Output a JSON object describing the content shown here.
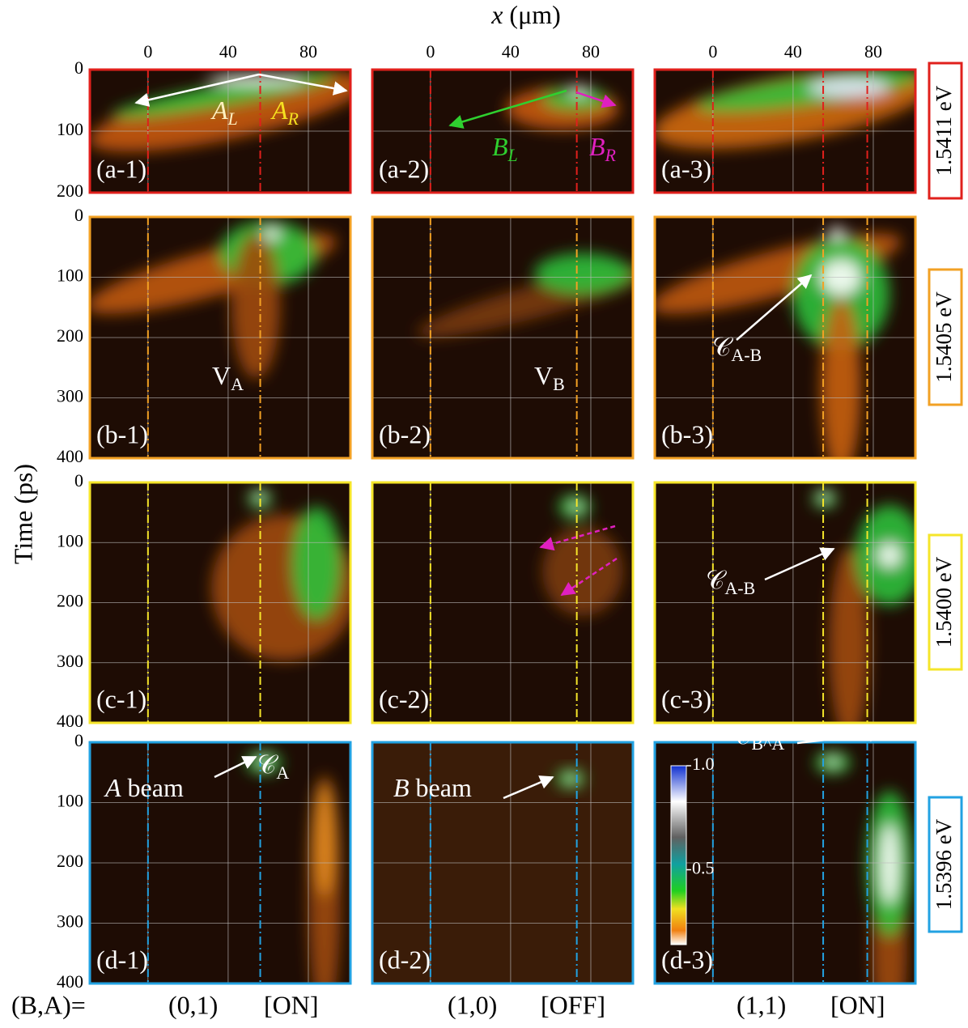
{
  "figure": {
    "xlabel": {
      "main": "x",
      "rest": " (μm)"
    },
    "ylabel": "Time (ps)",
    "xlim": [
      -29,
      101
    ],
    "xticks": [
      0,
      40,
      80
    ],
    "rows": [
      {
        "energy": "1.5411 eV",
        "color": "#e0201c",
        "ylim": [
          0,
          200
        ],
        "yticks": [
          0,
          100,
          200
        ],
        "panels": [
          "(a-1)",
          "(a-2)",
          "(a-3)"
        ]
      },
      {
        "energy": "1.5405 eV",
        "color": "#f2a124",
        "ylim": [
          0,
          400
        ],
        "yticks": [
          0,
          100,
          200,
          300,
          400
        ],
        "panels": [
          "(b-1)",
          "(b-2)",
          "(b-3)"
        ]
      },
      {
        "energy": "1.5400 eV",
        "color": "#f5e52a",
        "ylim": [
          0,
          400
        ],
        "yticks": [
          0,
          100,
          200,
          300,
          400
        ],
        "panels": [
          "(c-1)",
          "(c-2)",
          "(c-3)"
        ]
      },
      {
        "energy": "1.5396 eV",
        "color": "#22a2e2",
        "ylim": [
          0,
          400
        ],
        "yticks": [
          0,
          100,
          200,
          300,
          400
        ],
        "panels": [
          "(d-1)",
          "(d-2)",
          "(d-3)"
        ]
      }
    ],
    "state_label": "(B,A)=",
    "columns": [
      {
        "state": "(0,1)",
        "switch": "[ON]"
      },
      {
        "state": "(1,0)",
        "switch": "[OFF]"
      },
      {
        "state": "(1,1)",
        "switch": "[ON]"
      }
    ],
    "annotations": [
      {
        "main": "A",
        "sub": "L"
      },
      {
        "main": "A",
        "sub": "R"
      },
      {
        "main": "B",
        "sub": "L"
      },
      {
        "main": "B",
        "sub": "R"
      },
      {
        "main": "V",
        "sub": "A"
      },
      {
        "main": "V",
        "sub": "B"
      },
      {
        "main": "𝒞",
        "sub": "A-B"
      },
      {
        "main": "𝒞",
        "sub": "A-B"
      },
      {
        "main": "A",
        "rest": " beam"
      },
      {
        "main": "𝒞",
        "sub": "A"
      },
      {
        "main": "B",
        "rest": " beam"
      },
      {
        "main": "𝒞",
        "sub": "B^A"
      }
    ],
    "colorbar": {
      "lim": [
        0.14,
        1.0
      ],
      "ticks": [
        {
          "value": 1.0,
          "label": "1.0"
        },
        0.5
      ]
    }
  }
}
